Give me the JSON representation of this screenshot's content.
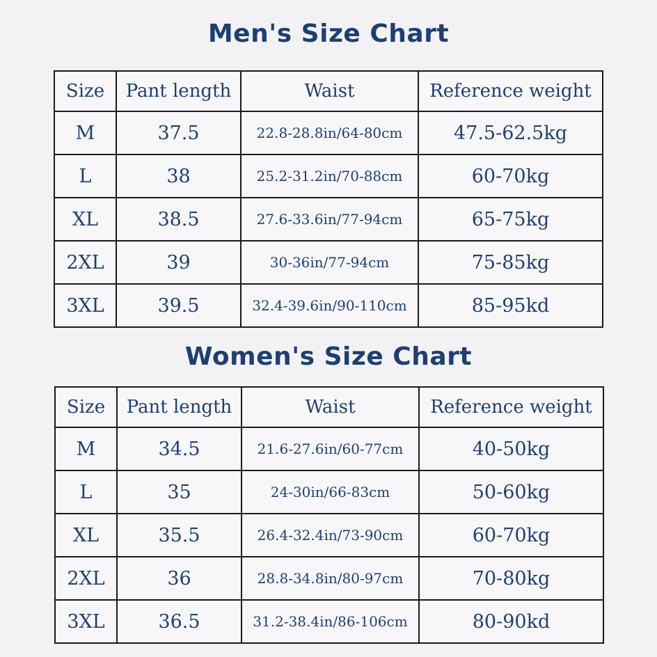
{
  "men": {
    "title": "Men's Size Chart",
    "headers": [
      "Size",
      "Pant length",
      "Waist",
      "Reference weight"
    ],
    "rows": [
      [
        "M",
        "37.5",
        "22.8-28.8in/64-80cm",
        "47.5-62.5kg"
      ],
      [
        "L",
        "38",
        "25.2-31.2in/70-88cm",
        "60-70kg"
      ],
      [
        "XL",
        "38.5",
        "27.6-33.6in/77-94cm",
        "65-75kg"
      ],
      [
        "2XL",
        "39",
        "30-36in/77-94cm",
        "75-85kg"
      ],
      [
        "3XL",
        "39.5",
        "32.4-39.6in/90-110cm",
        "85-95kd"
      ]
    ]
  },
  "women": {
    "title": "Women's Size Chart",
    "headers": [
      "Size",
      "Pant length",
      "Waist",
      "Reference weight"
    ],
    "rows": [
      [
        "M",
        "34.5",
        "21.6-27.6in/60-77cm",
        "40-50kg"
      ],
      [
        "L",
        "35",
        "24-30in/66-83cm",
        "50-60kg"
      ],
      [
        "XL",
        "35.5",
        "26.4-32.4in/73-90cm",
        "60-70kg"
      ],
      [
        "2XL",
        "36",
        "28.8-34.8in/80-97cm",
        "70-80kg"
      ],
      [
        "3XL",
        "36.5",
        "31.2-38.4in/86-106cm",
        "80-90kd"
      ]
    ]
  },
  "colors": {
    "text": "#1f3f73",
    "border": "#1a1a1a",
    "background": "#f2f2f4"
  }
}
